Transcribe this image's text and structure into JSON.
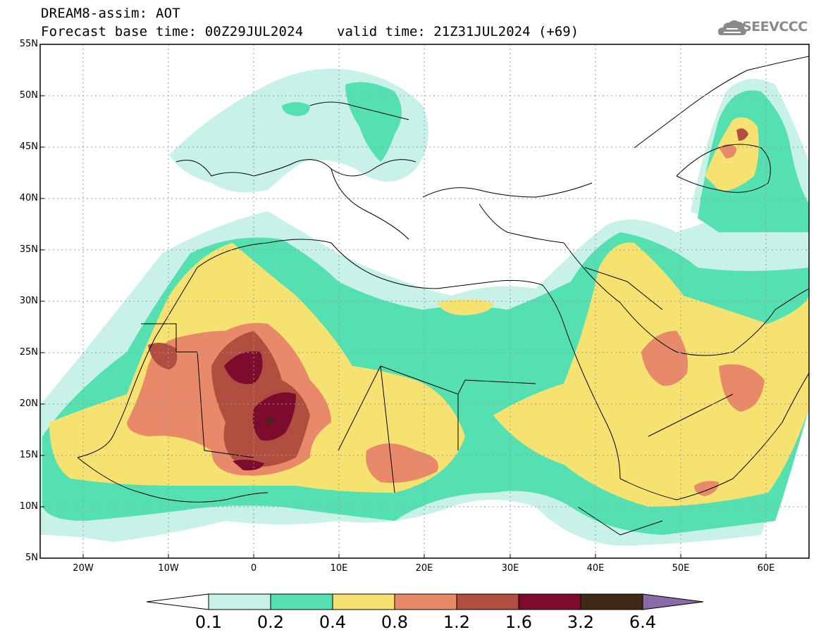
{
  "title": {
    "line1": "DREAM8-assim: AOT",
    "line2": "Forecast base time: 00Z29JUL2024",
    "valid": "valid time: 21Z31JUL2024 (+69)"
  },
  "logo": {
    "text": "SEEVCCC",
    "icon": "cloud-icon"
  },
  "map": {
    "lat_range": [
      "5N",
      "55N"
    ],
    "lon_range": [
      "25W",
      "65E"
    ],
    "lat_labels": [
      "55N",
      "50N",
      "45N",
      "40N",
      "35N",
      "30N",
      "25N",
      "20N",
      "15N",
      "10N",
      "5N"
    ],
    "lon_labels": [
      "20W",
      "10W",
      "0",
      "10E",
      "20E",
      "30E",
      "40E",
      "50E",
      "60E"
    ],
    "grid": "dashed"
  },
  "colorbar": {
    "labels": [
      "0.1",
      "0.2",
      "0.4",
      "0.8",
      "1.2",
      "1.6",
      "3.2",
      "6.4"
    ],
    "colors": [
      "#c8f1e9",
      "#55e0b2",
      "#f6e270",
      "#e8896a",
      "#b24e40",
      "#7d0b2e",
      "#402a17"
    ],
    "under_color": "#ffffff",
    "over_color": "#8a6aa8"
  }
}
